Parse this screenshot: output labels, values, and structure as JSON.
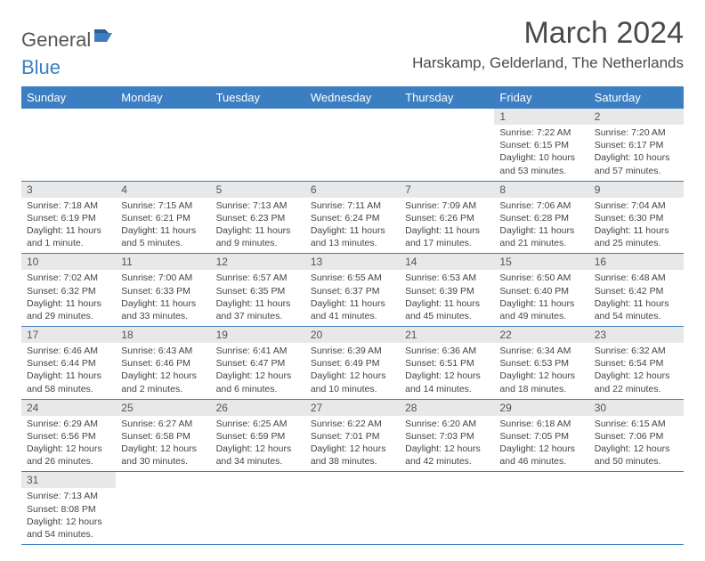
{
  "brand": {
    "part1": "General",
    "part2": "Blue"
  },
  "title": "March 2024",
  "location": "Harskamp, Gelderland, The Netherlands",
  "dayHeaders": [
    "Sunday",
    "Monday",
    "Tuesday",
    "Wednesday",
    "Thursday",
    "Friday",
    "Saturday"
  ],
  "colors": {
    "headerBg": "#3b7ec2",
    "headerText": "#ffffff",
    "dayNumBg": "#e8e8e8",
    "borderColor": "#3b7ec2",
    "logoBlue": "#3b7ec2",
    "textColor": "#4a4a4a"
  },
  "fonts": {
    "title_size_pt": 26,
    "location_size_pt": 13,
    "header_size_pt": 10,
    "body_size_pt": 8
  },
  "weeks": [
    [
      null,
      null,
      null,
      null,
      null,
      {
        "n": "1",
        "sunrise": "7:22 AM",
        "sunset": "6:15 PM",
        "daylight": "10 hours and 53 minutes."
      },
      {
        "n": "2",
        "sunrise": "7:20 AM",
        "sunset": "6:17 PM",
        "daylight": "10 hours and 57 minutes."
      }
    ],
    [
      {
        "n": "3",
        "sunrise": "7:18 AM",
        "sunset": "6:19 PM",
        "daylight": "11 hours and 1 minute."
      },
      {
        "n": "4",
        "sunrise": "7:15 AM",
        "sunset": "6:21 PM",
        "daylight": "11 hours and 5 minutes."
      },
      {
        "n": "5",
        "sunrise": "7:13 AM",
        "sunset": "6:23 PM",
        "daylight": "11 hours and 9 minutes."
      },
      {
        "n": "6",
        "sunrise": "7:11 AM",
        "sunset": "6:24 PM",
        "daylight": "11 hours and 13 minutes."
      },
      {
        "n": "7",
        "sunrise": "7:09 AM",
        "sunset": "6:26 PM",
        "daylight": "11 hours and 17 minutes."
      },
      {
        "n": "8",
        "sunrise": "7:06 AM",
        "sunset": "6:28 PM",
        "daylight": "11 hours and 21 minutes."
      },
      {
        "n": "9",
        "sunrise": "7:04 AM",
        "sunset": "6:30 PM",
        "daylight": "11 hours and 25 minutes."
      }
    ],
    [
      {
        "n": "10",
        "sunrise": "7:02 AM",
        "sunset": "6:32 PM",
        "daylight": "11 hours and 29 minutes."
      },
      {
        "n": "11",
        "sunrise": "7:00 AM",
        "sunset": "6:33 PM",
        "daylight": "11 hours and 33 minutes."
      },
      {
        "n": "12",
        "sunrise": "6:57 AM",
        "sunset": "6:35 PM",
        "daylight": "11 hours and 37 minutes."
      },
      {
        "n": "13",
        "sunrise": "6:55 AM",
        "sunset": "6:37 PM",
        "daylight": "11 hours and 41 minutes."
      },
      {
        "n": "14",
        "sunrise": "6:53 AM",
        "sunset": "6:39 PM",
        "daylight": "11 hours and 45 minutes."
      },
      {
        "n": "15",
        "sunrise": "6:50 AM",
        "sunset": "6:40 PM",
        "daylight": "11 hours and 49 minutes."
      },
      {
        "n": "16",
        "sunrise": "6:48 AM",
        "sunset": "6:42 PM",
        "daylight": "11 hours and 54 minutes."
      }
    ],
    [
      {
        "n": "17",
        "sunrise": "6:46 AM",
        "sunset": "6:44 PM",
        "daylight": "11 hours and 58 minutes."
      },
      {
        "n": "18",
        "sunrise": "6:43 AM",
        "sunset": "6:46 PM",
        "daylight": "12 hours and 2 minutes."
      },
      {
        "n": "19",
        "sunrise": "6:41 AM",
        "sunset": "6:47 PM",
        "daylight": "12 hours and 6 minutes."
      },
      {
        "n": "20",
        "sunrise": "6:39 AM",
        "sunset": "6:49 PM",
        "daylight": "12 hours and 10 minutes."
      },
      {
        "n": "21",
        "sunrise": "6:36 AM",
        "sunset": "6:51 PM",
        "daylight": "12 hours and 14 minutes."
      },
      {
        "n": "22",
        "sunrise": "6:34 AM",
        "sunset": "6:53 PM",
        "daylight": "12 hours and 18 minutes."
      },
      {
        "n": "23",
        "sunrise": "6:32 AM",
        "sunset": "6:54 PM",
        "daylight": "12 hours and 22 minutes."
      }
    ],
    [
      {
        "n": "24",
        "sunrise": "6:29 AM",
        "sunset": "6:56 PM",
        "daylight": "12 hours and 26 minutes."
      },
      {
        "n": "25",
        "sunrise": "6:27 AM",
        "sunset": "6:58 PM",
        "daylight": "12 hours and 30 minutes."
      },
      {
        "n": "26",
        "sunrise": "6:25 AM",
        "sunset": "6:59 PM",
        "daylight": "12 hours and 34 minutes."
      },
      {
        "n": "27",
        "sunrise": "6:22 AM",
        "sunset": "7:01 PM",
        "daylight": "12 hours and 38 minutes."
      },
      {
        "n": "28",
        "sunrise": "6:20 AM",
        "sunset": "7:03 PM",
        "daylight": "12 hours and 42 minutes."
      },
      {
        "n": "29",
        "sunrise": "6:18 AM",
        "sunset": "7:05 PM",
        "daylight": "12 hours and 46 minutes."
      },
      {
        "n": "30",
        "sunrise": "6:15 AM",
        "sunset": "7:06 PM",
        "daylight": "12 hours and 50 minutes."
      }
    ],
    [
      {
        "n": "31",
        "sunrise": "7:13 AM",
        "sunset": "8:08 PM",
        "daylight": "12 hours and 54 minutes."
      },
      null,
      null,
      null,
      null,
      null,
      null
    ]
  ]
}
